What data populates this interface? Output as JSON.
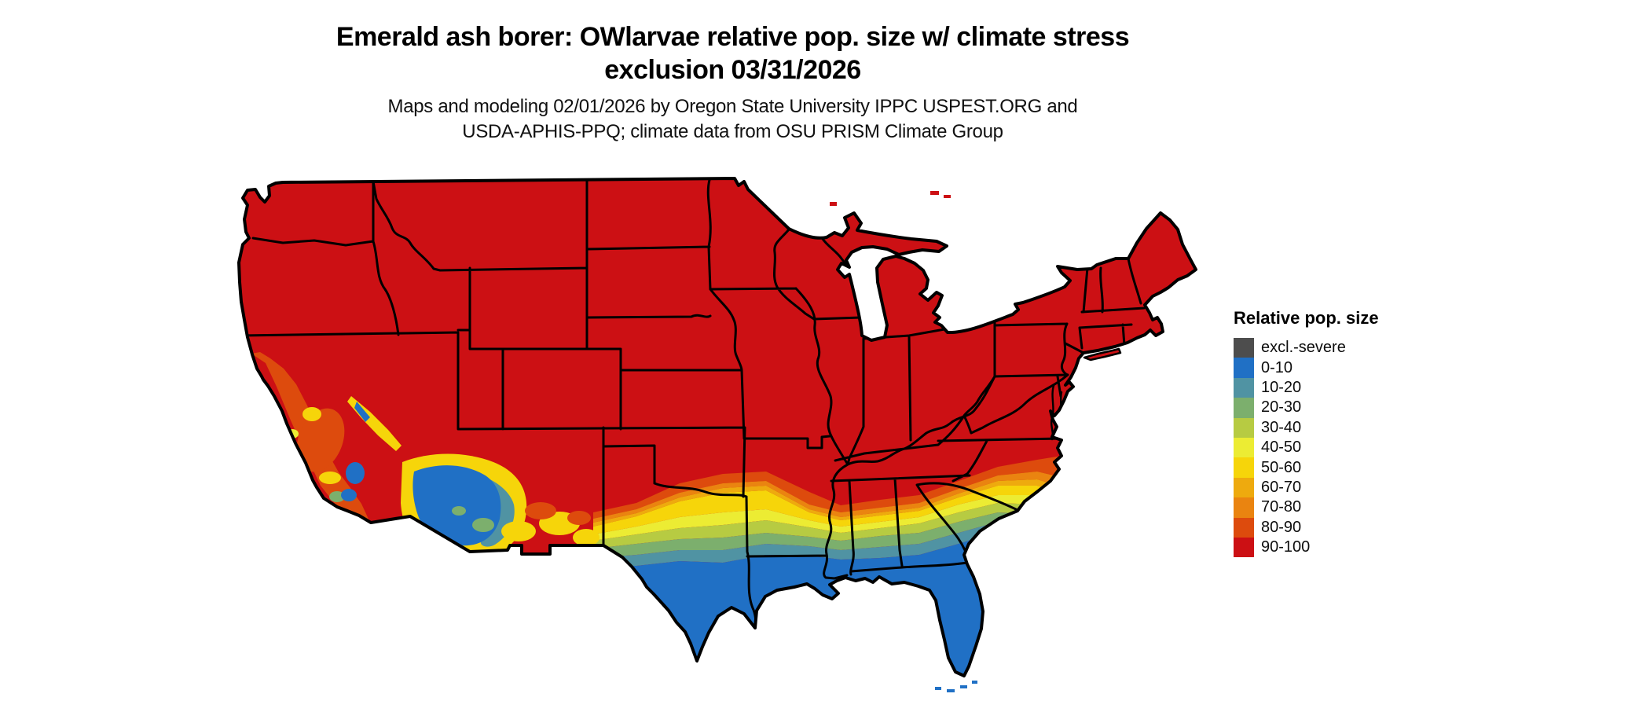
{
  "title": {
    "line1": "Emerald ash borer: OWlarvae relative pop. size w/ climate stress",
    "line2": "exclusion 03/31/2026"
  },
  "subtitle": {
    "line1": "Maps and modeling 02/01/2026 by Oregon State University IPPC USPEST.ORG and",
    "line2": "USDA-APHIS-PPQ; climate data from OSU PRISM Climate Group"
  },
  "legend": {
    "title": "Relative pop. size",
    "entries": [
      {
        "label": "excl.-severe",
        "color": "#4d4d4d"
      },
      {
        "label": "0-10",
        "color": "#2070c5"
      },
      {
        "label": "10-20",
        "color": "#5093a3"
      },
      {
        "label": "20-30",
        "color": "#7caf6d"
      },
      {
        "label": "30-40",
        "color": "#b7cb42"
      },
      {
        "label": "40-50",
        "color": "#ecec33"
      },
      {
        "label": "50-60",
        "color": "#f6d50a"
      },
      {
        "label": "60-70",
        "color": "#eeaa0e"
      },
      {
        "label": "70-80",
        "color": "#ea8410"
      },
      {
        "label": "80-90",
        "color": "#dd4b0d"
      },
      {
        "label": "90-100",
        "color": "#cc1014"
      }
    ]
  },
  "map": {
    "region": "Contiguous United States",
    "type": "choropleth-raster",
    "border_color": "#000000",
    "background": "#ffffff",
    "dominant_value": "90-100",
    "gradient_order_north_to_south": [
      "90-100",
      "80-90",
      "70-80",
      "60-70",
      "50-60",
      "40-50",
      "30-40",
      "20-30",
      "10-20",
      "0-10"
    ],
    "low_value_areas": "Gulf Coast, Florida peninsula, southern Texas, southern Louisiana, southern Arizona, coastal southern California",
    "high_value_areas": "Most of the northern, central and eastern U.S."
  }
}
